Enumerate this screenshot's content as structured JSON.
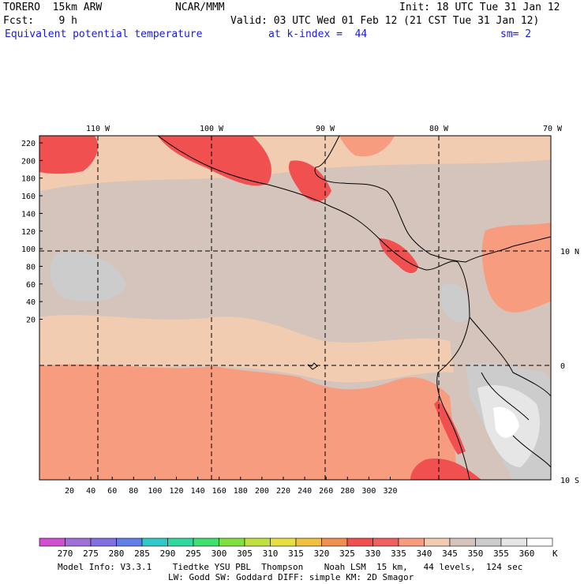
{
  "header": {
    "model": "TORERO  15km ARW",
    "org": "NCAR/MMM",
    "init": "Init: 18 UTC Tue 31 Jan 12",
    "fcst": "Fcst:    9 h",
    "valid": "Valid: 03 UTC Wed 01 Feb 12 (21 CST Tue 31 Jan 12)",
    "field": "Equivalent potential temperature",
    "level": "at k-index =  44",
    "smooth": "sm= 2"
  },
  "top_lon_labels": [
    "110 W",
    "100 W",
    "90 W",
    "80 W",
    "70 W"
  ],
  "right_lat_labels": [
    "10 N",
    "0",
    "10 S"
  ],
  "left_y_ticks": [
    "220",
    "200",
    "180",
    "160",
    "140",
    "120",
    "100",
    "80",
    "60",
    "40",
    "20"
  ],
  "bottom_x_ticks": [
    "20",
    "40",
    "60",
    "80",
    "100",
    "120",
    "140",
    "160",
    "180",
    "200",
    "220",
    "240",
    "260",
    "280",
    "300",
    "320"
  ],
  "colorbar": {
    "unit": "K",
    "labels": [
      "270",
      "275",
      "280",
      "285",
      "290",
      "295",
      "300",
      "305",
      "310",
      "315",
      "320",
      "325",
      "330",
      "335",
      "340",
      "345",
      "350",
      "355",
      "360"
    ],
    "colors": [
      "#d050d0",
      "#a070d8",
      "#8070e0",
      "#6080e8",
      "#30c8c8",
      "#30d8a0",
      "#40e070",
      "#80e040",
      "#c0e040",
      "#e8e040",
      "#f0c040",
      "#f09050",
      "#f05050",
      "#f06060",
      "#f89c80",
      "#f2ccb0",
      "#d4c4bc",
      "#cccccc",
      "#e6e6e6",
      "#ffffff"
    ]
  },
  "footer": {
    "line1": "Model Info: V3.3.1    Tiedtke YSU PBL  Thompson    Noah LSM  15 km,   44 levels,  124 sec",
    "line2": "LW: Godd SW: Goddard DIFF: simple KM: 2D Smagor"
  },
  "map_colors": {
    "ocean_warm": "#f89c80",
    "ocean_mid": "#f2ccb0",
    "gray": "#d4c4bc",
    "light_gray": "#cccccc",
    "pale": "#e6e6e6",
    "white": "#ffffff",
    "red": "#f05050"
  }
}
